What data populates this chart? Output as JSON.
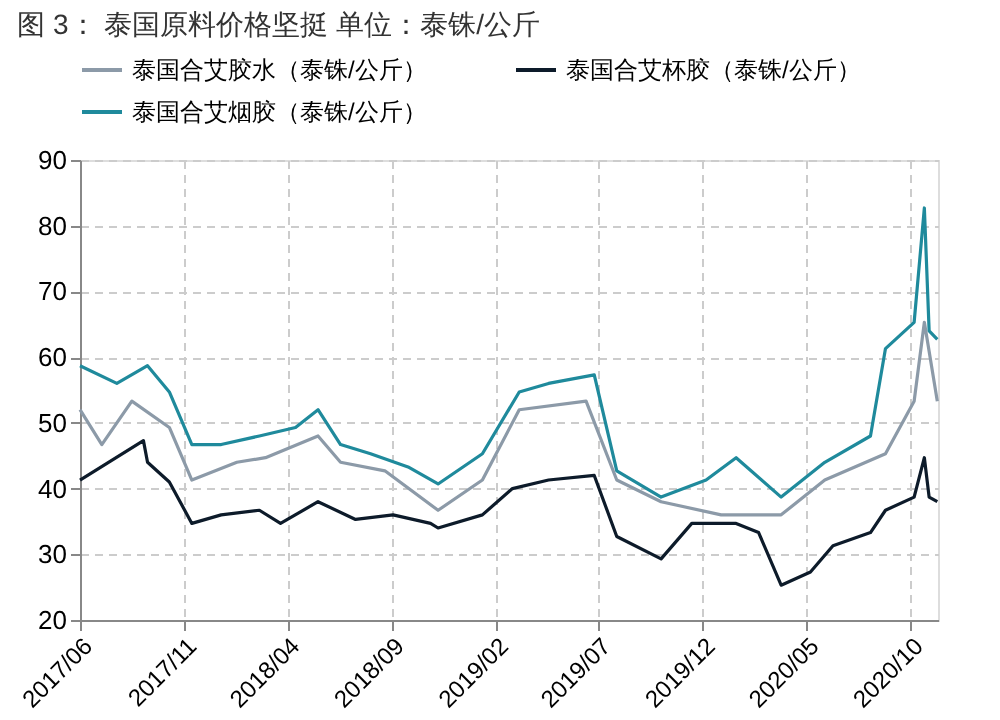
{
  "chart_data": {
    "type": "line",
    "title": "图 3：     泰国原料价格坚挺    单位：泰铢/公斤",
    "xlim": [
      "2017-06-01",
      "2020-11-10"
    ],
    "xticks": [
      {
        "value": "2017-06-01",
        "label": "2017/06"
      },
      {
        "value": "2017-11-01",
        "label": "2017/11"
      },
      {
        "value": "2018-04-01",
        "label": "2018/04"
      },
      {
        "value": "2018-09-01",
        "label": "2018/09"
      },
      {
        "value": "2019-02-01",
        "label": "2019/02"
      },
      {
        "value": "2019-07-01",
        "label": "2019/07"
      },
      {
        "value": "2019-12-01",
        "label": "2019/12"
      },
      {
        "value": "2020-05-01",
        "label": "2020/05"
      },
      {
        "value": "2020-10-01",
        "label": "2020/10"
      }
    ],
    "ylim": [
      20,
      90
    ],
    "yticks": [
      20,
      30,
      40,
      50,
      60,
      70,
      80,
      90
    ],
    "grid": true,
    "legend": "top",
    "line_style": "solid",
    "marker": "none",
    "series": [
      {
        "name": "泰国合艾胶水（泰铢/公斤）",
        "color": "#8c9aa8",
        "x": [
          "2017-06-01",
          "2017-07-03",
          "2017-08-16",
          "2017-10-10",
          "2017-11-12",
          "2018-01-17",
          "2018-02-28",
          "2018-05-16",
          "2018-06-18",
          "2018-08-22",
          "2018-11-08",
          "2019-01-12",
          "2019-03-07",
          "2019-06-13",
          "2019-07-28",
          "2019-10-01",
          "2019-12-28",
          "2020-03-25",
          "2020-05-28",
          "2020-08-25",
          "2020-10-06",
          "2020-10-21",
          "2020-11-09"
        ],
        "values": [
          52,
          46.7,
          53.3,
          49.3,
          41.3,
          44,
          44.7,
          48,
          44,
          42.7,
          36.7,
          41.3,
          52,
          53.3,
          41.3,
          38,
          36,
          36,
          41.3,
          45.3,
          53.3,
          65.3,
          53.3
        ]
      },
      {
        "name": "泰国合艾杯胶（泰铢/公斤）",
        "color": "#0d1b2a",
        "x": [
          "2017-06-01",
          "2017-09-02",
          "2017-09-08",
          "2017-10-10",
          "2017-11-12",
          "2017-12-25",
          "2018-02-19",
          "2018-03-22",
          "2018-05-16",
          "2018-07-10",
          "2018-09-03",
          "2018-10-28",
          "2018-11-08",
          "2019-01-12",
          "2019-02-25",
          "2019-04-19",
          "2019-06-25",
          "2019-07-28",
          "2019-10-01",
          "2019-11-15",
          "2020-01-19",
          "2020-02-21",
          "2020-03-25",
          "2020-05-07",
          "2020-06-09",
          "2020-08-03",
          "2020-08-25",
          "2020-10-06",
          "2020-10-21",
          "2020-10-28",
          "2020-11-09"
        ],
        "values": [
          41.3,
          47.3,
          44,
          41,
          34.7,
          36,
          36.7,
          34.7,
          38,
          35.3,
          36,
          34.7,
          34,
          36,
          40,
          41.3,
          42,
          32.7,
          29.3,
          34.7,
          34.7,
          33.3,
          25.3,
          27.3,
          31.3,
          33.3,
          36.7,
          38.7,
          44.7,
          38.7,
          38
        ]
      },
      {
        "name": "泰国合艾烟胶（泰铢/公斤）",
        "color": "#1f8a9c",
        "x": [
          "2017-06-01",
          "2017-07-25",
          "2017-09-08",
          "2017-10-10",
          "2017-11-12",
          "2017-12-25",
          "2018-02-19",
          "2018-04-13",
          "2018-05-16",
          "2018-06-18",
          "2018-08-01",
          "2018-09-25",
          "2018-11-08",
          "2019-01-12",
          "2019-03-07",
          "2019-04-19",
          "2019-06-25",
          "2019-07-28",
          "2019-10-01",
          "2019-12-06",
          "2020-01-19",
          "2020-03-25",
          "2020-05-28",
          "2020-08-03",
          "2020-08-25",
          "2020-10-06",
          "2020-10-21",
          "2020-10-28",
          "2020-11-09"
        ],
        "values": [
          58.7,
          56,
          58.7,
          54.7,
          46.7,
          46.7,
          48,
          49.3,
          52,
          46.7,
          45.3,
          43.3,
          40.7,
          45.3,
          54.7,
          56,
          57.3,
          42.7,
          38.7,
          41.3,
          44.7,
          38.7,
          44,
          48,
          61.3,
          65.3,
          82.7,
          64,
          62.7
        ]
      }
    ]
  }
}
